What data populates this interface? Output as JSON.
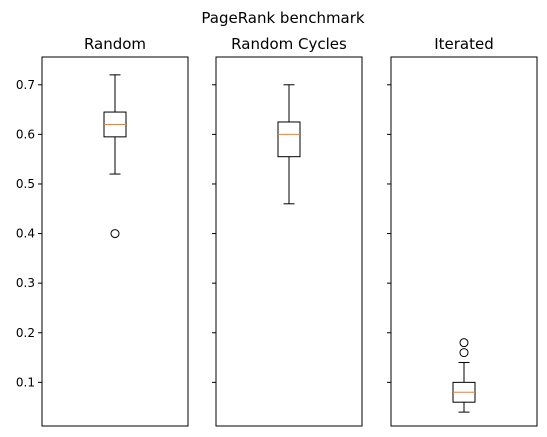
{
  "chart_data": {
    "type": "box",
    "title": "PageRank benchmark",
    "shared_y": true,
    "ylim": [
      0.012,
      0.756
    ],
    "yticks": [
      0.1,
      0.2,
      0.3,
      0.4,
      0.5,
      0.6,
      0.7
    ],
    "ytick_labels": [
      "0.1",
      "0.2",
      "0.3",
      "0.4",
      "0.5",
      "0.6",
      "0.7"
    ],
    "grid": false,
    "median_color": "#ff7f0e",
    "box_color": "#000000",
    "panels": [
      {
        "title": "Random",
        "box": {
          "whisker_low": 0.52,
          "q1": 0.595,
          "median": 0.62,
          "q3": 0.645,
          "whisker_high": 0.72
        },
        "outliers": [
          0.4
        ]
      },
      {
        "title": "Random Cycles",
        "box": {
          "whisker_low": 0.46,
          "q1": 0.555,
          "median": 0.6,
          "q3": 0.625,
          "whisker_high": 0.7
        },
        "outliers": []
      },
      {
        "title": "Iterated",
        "box": {
          "whisker_low": 0.04,
          "q1": 0.06,
          "median": 0.08,
          "q3": 0.1,
          "whisker_high": 0.14
        },
        "outliers": [
          0.16,
          0.18
        ]
      }
    ]
  }
}
